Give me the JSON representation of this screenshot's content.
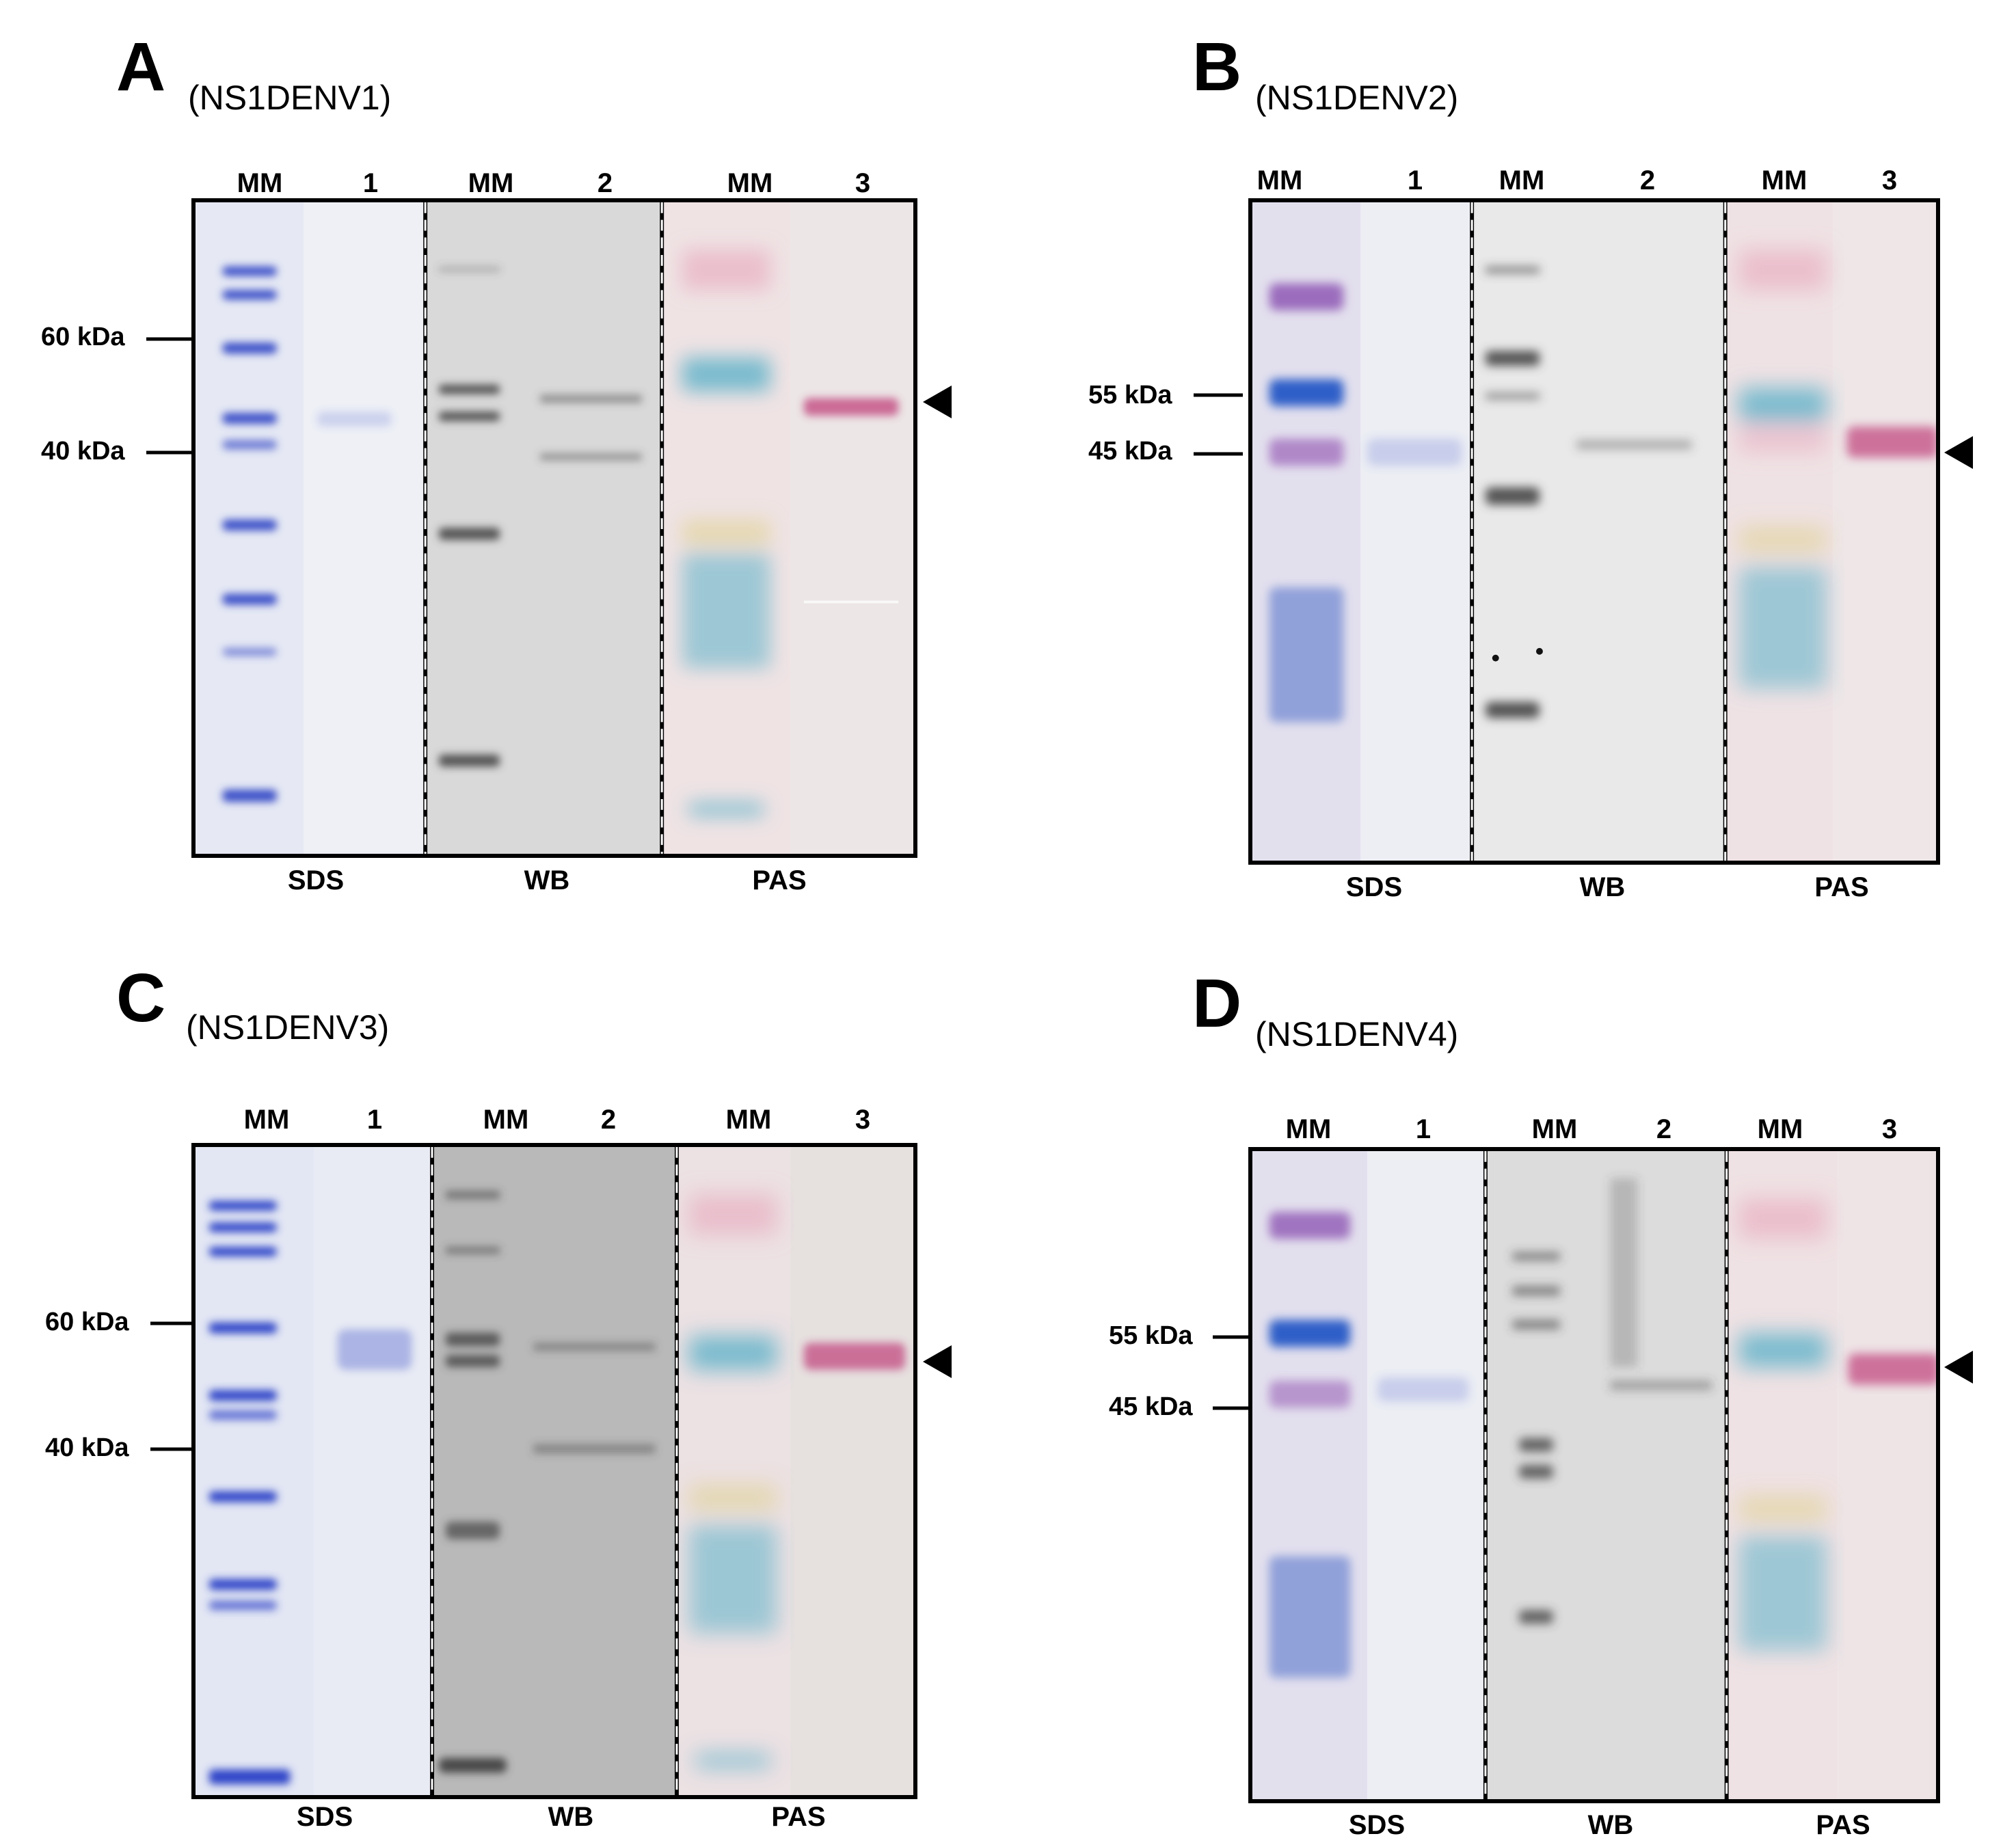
{
  "panels": [
    {
      "letter": "A",
      "subtitle": "(NS1DENV1)",
      "lane_headers": [
        "MM",
        "1",
        "MM",
        "2",
        "MM",
        "3"
      ],
      "sections": [
        "SDS",
        "WB",
        "PAS"
      ],
      "markers": [
        "60 kDa",
        "40 kDa"
      ]
    },
    {
      "letter": "B",
      "subtitle": "(NS1DENV2)",
      "lane_headers": [
        "MM",
        "1",
        "MM",
        "2",
        "MM",
        "3"
      ],
      "sections": [
        "SDS",
        "WB",
        "PAS"
      ],
      "markers": [
        "55 kDa",
        "45 kDa"
      ]
    },
    {
      "letter": "C",
      "subtitle": "(NS1DENV3)",
      "lane_headers": [
        "MM",
        "1",
        "MM",
        "2",
        "MM",
        "3"
      ],
      "sections": [
        "SDS",
        "WB",
        "PAS"
      ],
      "markers": [
        "60 kDa",
        "40 kDa"
      ]
    },
    {
      "letter": "D",
      "subtitle": "(NS1DENV4)",
      "lane_headers": [
        "MM",
        "1",
        "MM",
        "2",
        "MM",
        "3"
      ],
      "sections": [
        "SDS",
        "WB",
        "PAS"
      ],
      "markers": [
        "55 kDa",
        "45 kDa"
      ]
    }
  ],
  "colors": {
    "coomassie": "#3a4fc8",
    "wb_band": "#555555",
    "pas_pink": "#c0407a",
    "pas_cyan": "#5ab0c8"
  }
}
